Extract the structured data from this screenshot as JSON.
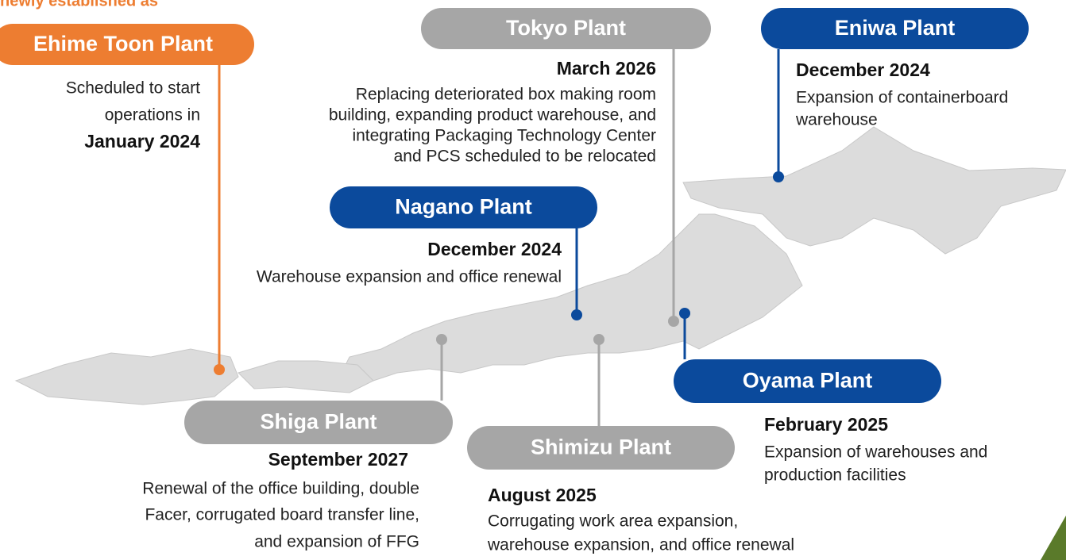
{
  "header": {
    "note": "newly established as"
  },
  "plants": [
    {
      "name": "Ehime Toon Plant",
      "color": "#ed7d31",
      "lines": [
        "Scheduled to start",
        "operations in"
      ],
      "date": "January 2024"
    },
    {
      "name": "Tokyo Plant",
      "color": "#a6a6a6",
      "date": "March 2026",
      "lines": [
        "Replacing deteriorated box making room",
        "building, expanding product warehouse, and",
        "integrating Packaging Technology Center",
        "and PCS scheduled to be relocated"
      ]
    },
    {
      "name": "Eniwa Plant",
      "color": "#0b4a9c",
      "date": "December 2024",
      "lines": [
        "Expansion of containerboard",
        "warehouse"
      ]
    },
    {
      "name": "Nagano Plant",
      "color": "#0b4a9c",
      "date": "December 2024",
      "lines": [
        "Warehouse expansion and office renewal"
      ]
    },
    {
      "name": "Oyama Plant",
      "color": "#0b4a9c",
      "date": "February 2025",
      "lines": [
        "Expansion of warehouses and",
        "production facilities"
      ]
    },
    {
      "name": "Shiga Plant",
      "color": "#a6a6a6",
      "date": "September 2027",
      "lines": [
        "Renewal of the office building, double",
        "Facer, corrugated board transfer line,",
        "and expansion of FFG"
      ]
    },
    {
      "name": "Shimizu Plant",
      "color": "#a6a6a6",
      "date": "August 2025",
      "lines": [
        "Corrugating work area expansion,",
        "warehouse expansion, and office renewal"
      ]
    }
  ]
}
